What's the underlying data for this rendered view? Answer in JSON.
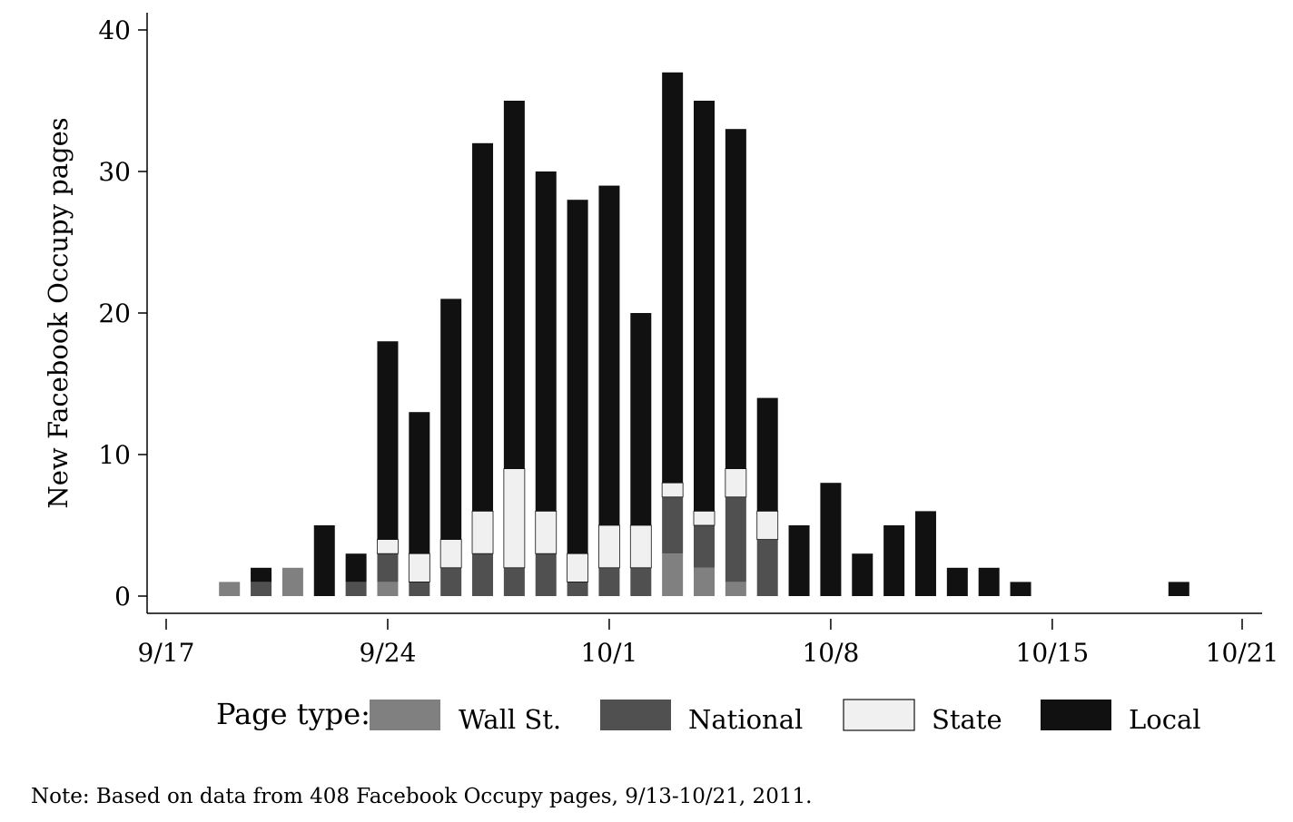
{
  "chart_data": {
    "type": "bar",
    "stacked": true,
    "title": "",
    "xlabel": "",
    "ylabel": "New Facebook Occupy pages",
    "ylim": [
      0,
      40
    ],
    "yticks": [
      0,
      10,
      20,
      30,
      40
    ],
    "xticks": [
      {
        "date": "2011-09-17",
        "label": "9/17"
      },
      {
        "date": "2011-09-24",
        "label": "9/24"
      },
      {
        "date": "2011-10-01",
        "label": "10/1"
      },
      {
        "date": "2011-10-08",
        "label": "10/8"
      },
      {
        "date": "2011-10-15",
        "label": "10/15"
      },
      {
        "date": "2011-10-21",
        "label": "10/21"
      }
    ],
    "xlim": [
      "2011-09-17",
      "2011-10-21"
    ],
    "legend": {
      "title": "Page type:",
      "placement": "bottom"
    },
    "grid": false,
    "series": [
      {
        "name": "Wall St.",
        "color": "#808080"
      },
      {
        "name": "National",
        "color": "#505050"
      },
      {
        "name": "State",
        "color": "#f0f0f0"
      },
      {
        "name": "Local",
        "color": "#111111"
      }
    ],
    "bars": [
      {
        "date": "2011-09-19",
        "values": [
          1,
          0,
          0,
          0
        ]
      },
      {
        "date": "2011-09-20",
        "values": [
          0,
          1,
          0,
          1
        ]
      },
      {
        "date": "2011-09-21",
        "values": [
          2,
          0,
          0,
          0
        ]
      },
      {
        "date": "2011-09-22",
        "values": [
          0,
          0,
          0,
          5
        ]
      },
      {
        "date": "2011-09-23",
        "values": [
          0,
          1,
          0,
          2
        ]
      },
      {
        "date": "2011-09-24",
        "values": [
          1,
          2,
          1,
          14
        ]
      },
      {
        "date": "2011-09-25",
        "values": [
          0,
          1,
          2,
          10
        ]
      },
      {
        "date": "2011-09-26",
        "values": [
          0,
          2,
          2,
          17
        ]
      },
      {
        "date": "2011-09-27",
        "values": [
          0,
          3,
          3,
          26
        ]
      },
      {
        "date": "2011-09-28",
        "values": [
          0,
          2,
          7,
          26
        ]
      },
      {
        "date": "2011-09-29",
        "values": [
          0,
          3,
          3,
          24
        ]
      },
      {
        "date": "2011-09-30",
        "values": [
          0,
          1,
          2,
          25
        ]
      },
      {
        "date": "2011-10-01",
        "values": [
          0,
          2,
          3,
          24
        ]
      },
      {
        "date": "2011-10-02",
        "values": [
          0,
          2,
          3,
          15
        ]
      },
      {
        "date": "2011-10-03",
        "values": [
          3,
          4,
          1,
          29
        ]
      },
      {
        "date": "2011-10-04",
        "values": [
          2,
          3,
          1,
          29
        ]
      },
      {
        "date": "2011-10-05",
        "values": [
          1,
          6,
          2,
          24
        ]
      },
      {
        "date": "2011-10-06",
        "values": [
          0,
          4,
          2,
          8
        ]
      },
      {
        "date": "2011-10-07",
        "values": [
          0,
          0,
          0,
          5
        ]
      },
      {
        "date": "2011-10-08",
        "values": [
          0,
          0,
          0,
          8
        ]
      },
      {
        "date": "2011-10-09",
        "values": [
          0,
          0,
          0,
          3
        ]
      },
      {
        "date": "2011-10-10",
        "values": [
          0,
          0,
          0,
          5
        ]
      },
      {
        "date": "2011-10-11",
        "values": [
          0,
          0,
          0,
          6
        ]
      },
      {
        "date": "2011-10-12",
        "values": [
          0,
          0,
          0,
          2
        ]
      },
      {
        "date": "2011-10-13",
        "values": [
          0,
          0,
          0,
          2
        ]
      },
      {
        "date": "2011-10-14",
        "values": [
          0,
          0,
          0,
          1
        ]
      },
      {
        "date": "2011-10-19",
        "values": [
          0,
          0,
          0,
          1
        ]
      }
    ]
  },
  "note": "Note: Based on data from 408 Facebook Occupy pages, 9/13-10/21, 2011."
}
